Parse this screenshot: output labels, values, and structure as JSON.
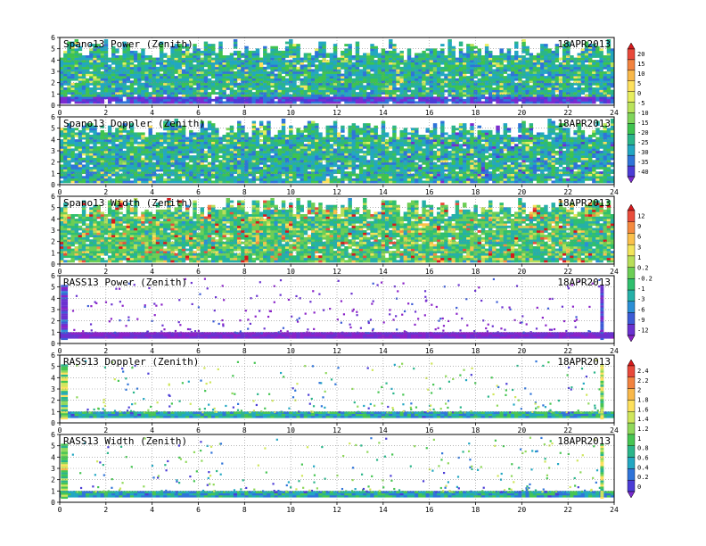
{
  "chart_data": [
    {
      "type": "heatmap",
      "title": "Spano13 Power (Zenith)",
      "date": "18APR2013",
      "x_ticks": [
        0,
        2,
        4,
        6,
        8,
        10,
        12,
        14,
        16,
        18,
        20,
        22,
        24
      ],
      "y_ticks": [
        0,
        1,
        2,
        3,
        4,
        5,
        6
      ],
      "xlim": [
        0,
        24
      ],
      "ylim": [
        0,
        6
      ],
      "grid": true,
      "field": "profiler",
      "colorbar_group": "A"
    },
    {
      "type": "heatmap",
      "title": "Spano13 Doppler (Zenith)",
      "date": "18APR2013",
      "x_ticks": [
        0,
        2,
        4,
        6,
        8,
        10,
        12,
        14,
        16,
        18,
        20,
        22,
        24
      ],
      "y_ticks": [
        0,
        1,
        2,
        3,
        4,
        5,
        6
      ],
      "xlim": [
        0,
        24
      ],
      "ylim": [
        0,
        6
      ],
      "grid": true,
      "field": "profiler",
      "colorbar_group": "A"
    },
    {
      "type": "heatmap",
      "title": "Spano13 Width (Zenith)",
      "date": "18APR2013",
      "x_ticks": [
        0,
        2,
        4,
        6,
        8,
        10,
        12,
        14,
        16,
        18,
        20,
        22,
        24
      ],
      "y_ticks": [
        0,
        1,
        2,
        3,
        4,
        5,
        6
      ],
      "xlim": [
        0,
        24
      ],
      "ylim": [
        0,
        6
      ],
      "grid": true,
      "field": "width",
      "colorbar_group": "B"
    },
    {
      "type": "heatmap",
      "title": "RASS13 Power (Zenith)",
      "date": "18APR2013",
      "x_ticks": [
        0,
        2,
        4,
        6,
        8,
        10,
        12,
        14,
        16,
        18,
        20,
        22,
        24
      ],
      "y_ticks": [
        0,
        1,
        2,
        3,
        4,
        5,
        6
      ],
      "xlim": [
        0,
        24
      ],
      "ylim": [
        0,
        6
      ],
      "grid": true,
      "field": "rass_power",
      "colorbar_group": "B"
    },
    {
      "type": "heatmap",
      "title": "RASS13 Doppler (Zenith)",
      "date": "18APR2013",
      "x_ticks": [
        0,
        2,
        4,
        6,
        8,
        10,
        12,
        14,
        16,
        18,
        20,
        22,
        24
      ],
      "y_ticks": [
        0,
        1,
        2,
        3,
        4,
        5,
        6
      ],
      "xlim": [
        0,
        24
      ],
      "ylim": [
        0,
        6
      ],
      "grid": true,
      "field": "rass",
      "colorbar_group": "C"
    },
    {
      "type": "heatmap",
      "title": "RASS13 Width (Zenith)",
      "date": "18APR2013",
      "x_ticks": [
        0,
        2,
        4,
        6,
        8,
        10,
        12,
        14,
        16,
        18,
        20,
        22,
        24
      ],
      "y_ticks": [
        0,
        1,
        2,
        3,
        4,
        5,
        6
      ],
      "xlim": [
        0,
        24
      ],
      "ylim": [
        0,
        6
      ],
      "grid": true,
      "field": "rass",
      "colorbar_group": "C"
    }
  ],
  "colorbars": [
    {
      "id": "A",
      "labels": [
        "20",
        "15",
        "10",
        "5",
        "0",
        "-5",
        "-10",
        "-15",
        "-20",
        "-25",
        "-30",
        "-35",
        "-40"
      ],
      "colors": [
        "#d7191c",
        "#e8493a",
        "#f2833f",
        "#f9b84a",
        "#fde05c",
        "#e7ee5e",
        "#b9e35b",
        "#7fd55a",
        "#3ec34f",
        "#2ab58a",
        "#22a7c2",
        "#2f74d9",
        "#4b3cd6",
        "#7a2bd0"
      ]
    },
    {
      "id": "B",
      "labels": [
        "12",
        "9",
        "6",
        "3",
        "1",
        "0.2",
        "-0.2",
        "-1",
        "-3",
        "-6",
        "-9",
        "-12"
      ],
      "colors": [
        "#d7191c",
        "#ea4d3b",
        "#f58a3f",
        "#fbc04b",
        "#f2e45a",
        "#b8de58",
        "#6cce55",
        "#2fbf6e",
        "#25b0a8",
        "#2b8fd6",
        "#3c5bd6",
        "#6a32d0",
        "#8a22c8"
      ]
    },
    {
      "id": "C",
      "labels": [
        "2.4",
        "2.2",
        "2",
        "1.8",
        "1.6",
        "1.4",
        "1.2",
        "1",
        "0.8",
        "0.6",
        "0.4",
        "0.2",
        "0"
      ],
      "colors": [
        "#d7191c",
        "#e8493a",
        "#f2833f",
        "#f9b84a",
        "#fde05c",
        "#cfe65b",
        "#8fd85a",
        "#46c552",
        "#2ab58a",
        "#22a7c2",
        "#2f74d9",
        "#4b3cd6",
        "#7a2bd0"
      ]
    }
  ]
}
